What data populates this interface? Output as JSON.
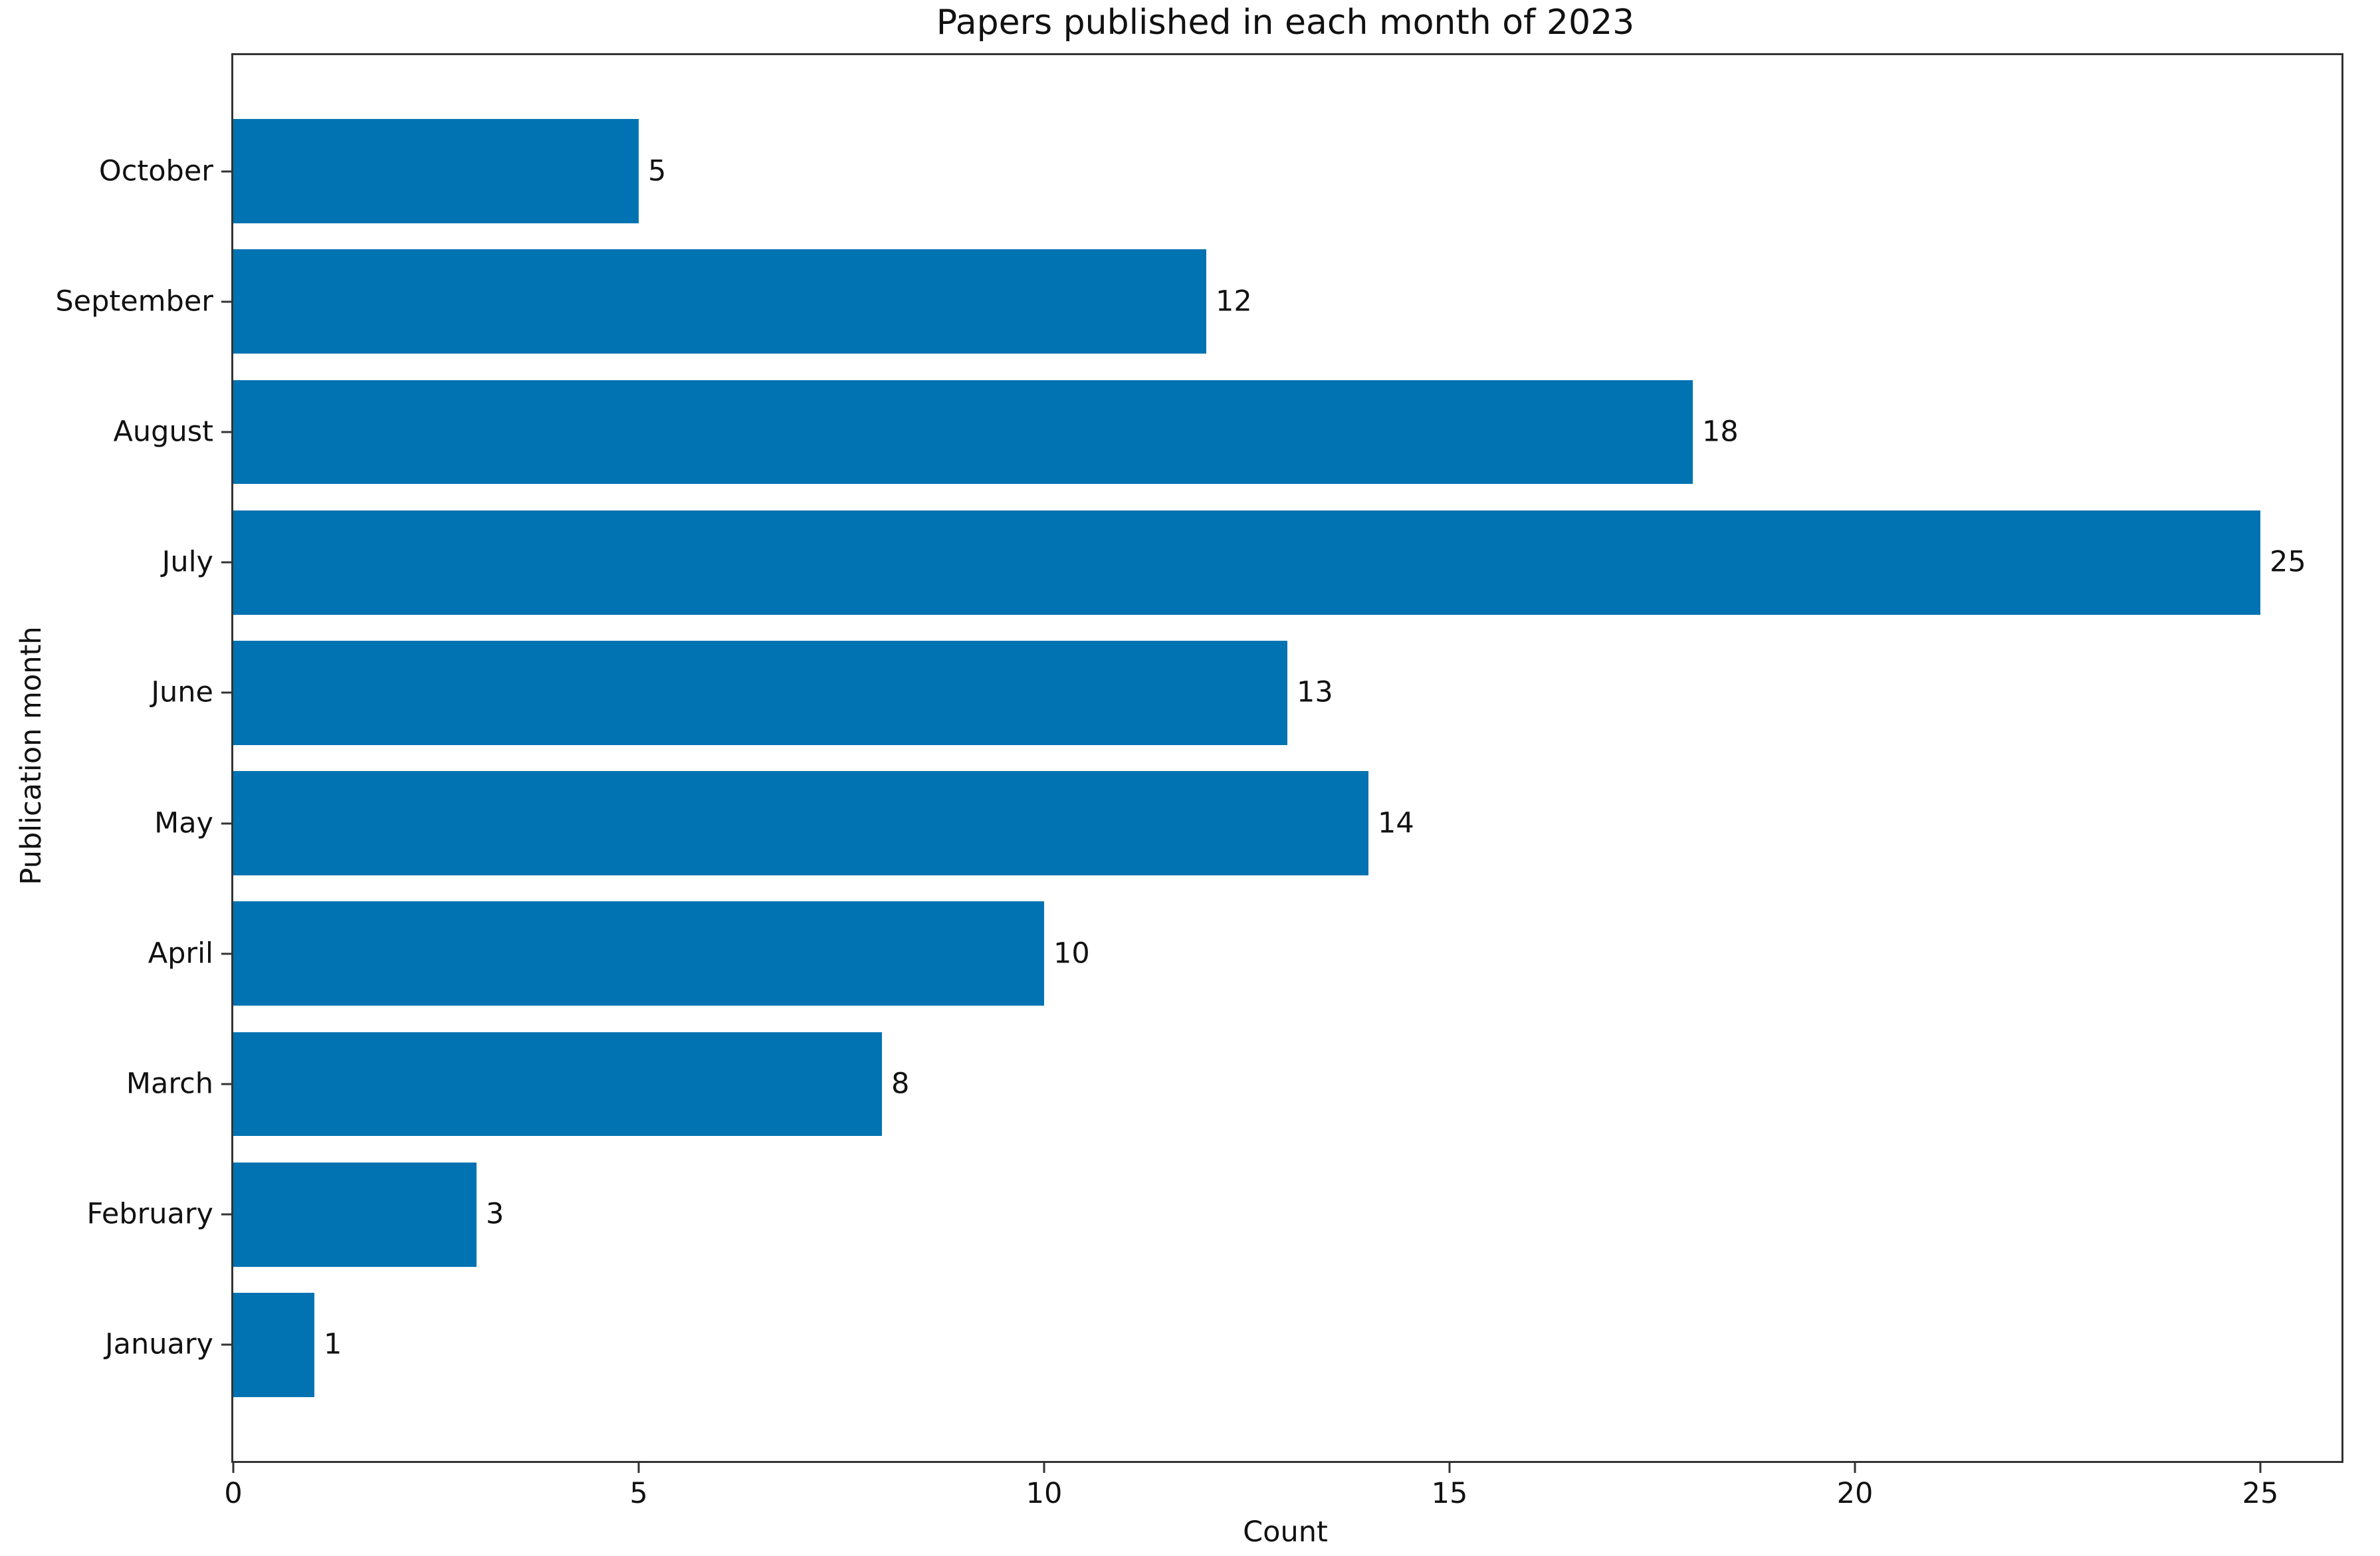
{
  "figure": {
    "background_color": "#ffffff",
    "spine_color": "#333333",
    "text_color": "#111111"
  },
  "chart_data": {
    "type": "bar",
    "orientation": "horizontal",
    "title": "Papers published in each month of 2023",
    "xlabel": "Count",
    "ylabel": "Publication month",
    "categories": [
      "October",
      "September",
      "August",
      "July",
      "June",
      "May",
      "April",
      "March",
      "February",
      "January"
    ],
    "values": [
      5,
      12,
      18,
      25,
      13,
      14,
      10,
      8,
      3,
      1
    ],
    "bar_color": "#0173b2",
    "bar_height_fraction": 0.8,
    "xlim": [
      0,
      26
    ],
    "xticks": [
      0,
      5,
      10,
      15,
      20,
      25
    ],
    "grid": false,
    "legend": null,
    "value_labels_shown": true
  }
}
